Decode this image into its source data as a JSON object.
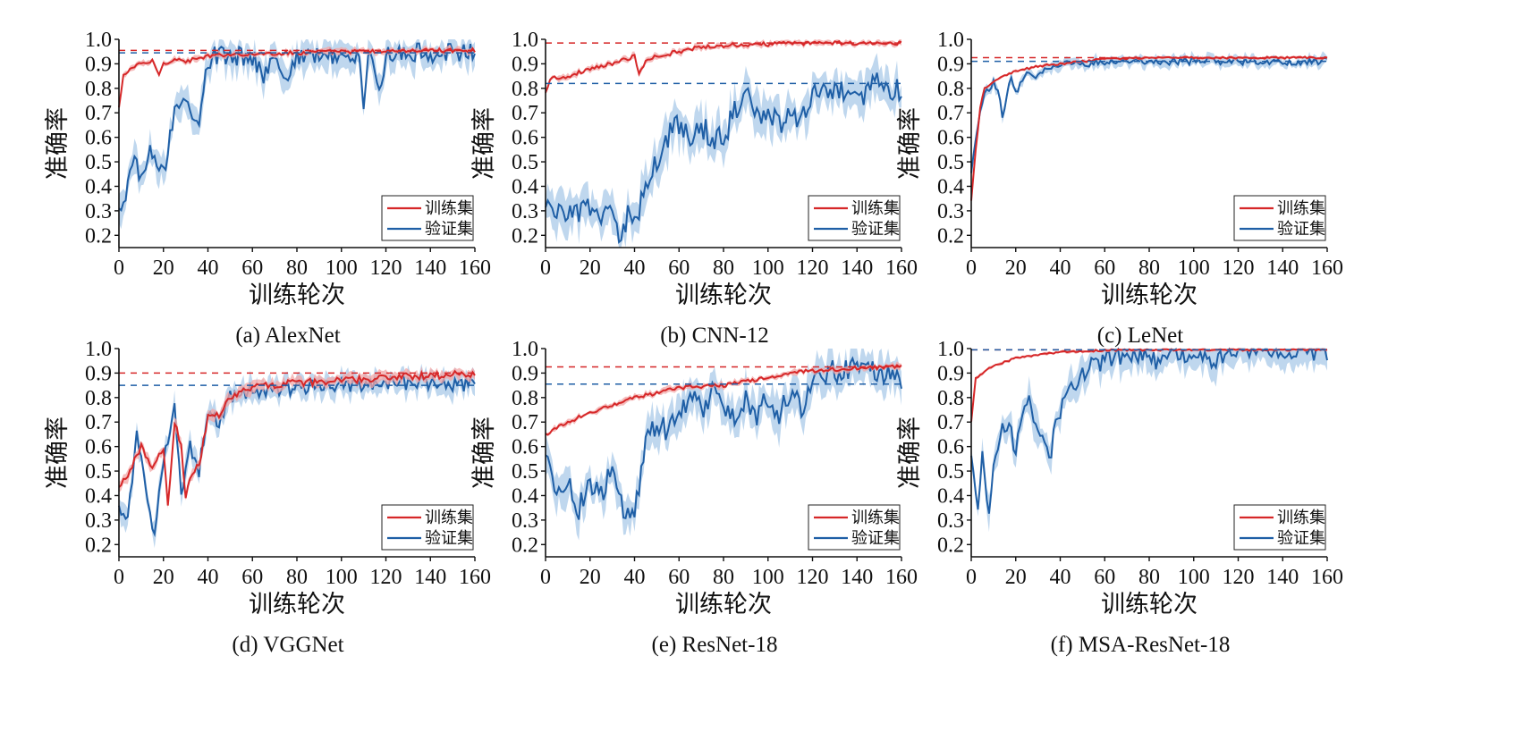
{
  "chart_data": [
    {
      "type": "line",
      "caption": "(a)  AlexNet",
      "xlabel": "训练轮次",
      "ylabel": "准确率",
      "xlim": [
        0,
        160
      ],
      "ylim": [
        0.15,
        1.0
      ],
      "xticks": [
        0,
        20,
        40,
        60,
        80,
        100,
        120,
        140,
        160
      ],
      "yticks": [
        0.2,
        0.3,
        0.4,
        0.5,
        0.6,
        0.7,
        0.8,
        0.9,
        1.0
      ],
      "legend": [
        "训练集",
        "验证集"
      ],
      "legend_position": "bottom-right",
      "colors": {
        "train": "#d62728",
        "val": "#1f5fa6",
        "train_band": "#f2a7a7",
        "val_band": "#a9c9e8"
      },
      "train_ref": 0.955,
      "val_ref": 0.945,
      "series": [
        {
          "name": "训练集",
          "x": [
            0,
            2,
            5,
            10,
            15,
            18,
            20,
            25,
            30,
            40,
            50,
            60,
            80,
            100,
            120,
            140,
            160
          ],
          "values": [
            0.72,
            0.85,
            0.88,
            0.9,
            0.91,
            0.86,
            0.9,
            0.92,
            0.91,
            0.93,
            0.94,
            0.94,
            0.945,
            0.95,
            0.95,
            0.955,
            0.955
          ],
          "noise": 0.008
        },
        {
          "name": "验证集",
          "x": [
            0,
            3,
            6,
            10,
            15,
            20,
            22,
            25,
            28,
            32,
            36,
            40,
            42,
            50,
            60,
            65,
            70,
            75,
            80,
            90,
            100,
            108,
            110,
            112,
            118,
            120,
            140,
            160
          ],
          "values": [
            0.3,
            0.35,
            0.5,
            0.45,
            0.55,
            0.45,
            0.55,
            0.7,
            0.75,
            0.72,
            0.68,
            0.9,
            0.93,
            0.93,
            0.93,
            0.86,
            0.92,
            0.85,
            0.93,
            0.93,
            0.94,
            0.92,
            0.72,
            0.93,
            0.8,
            0.94,
            0.945,
            0.945
          ],
          "noise": 0.04
        }
      ]
    },
    {
      "type": "line",
      "caption": "(b)  CNN-12",
      "xlabel": "训练轮次",
      "ylabel": "准确率",
      "xlim": [
        0,
        160
      ],
      "ylim": [
        0.15,
        1.0
      ],
      "xticks": [
        0,
        20,
        40,
        60,
        80,
        100,
        120,
        140,
        160
      ],
      "yticks": [
        0.2,
        0.3,
        0.4,
        0.5,
        0.6,
        0.7,
        0.8,
        0.9,
        1.0
      ],
      "legend": [
        "训练集",
        "验证集"
      ],
      "legend_position": "bottom-right",
      "colors": {
        "train": "#d62728",
        "val": "#1f5fa6",
        "train_band": "#f2a7a7",
        "val_band": "#a9c9e8"
      },
      "train_ref": 0.985,
      "val_ref": 0.82,
      "series": [
        {
          "name": "训练集",
          "x": [
            0,
            2,
            10,
            20,
            30,
            40,
            42,
            45,
            50,
            60,
            70,
            80,
            100,
            120,
            140,
            160
          ],
          "values": [
            0.78,
            0.84,
            0.85,
            0.88,
            0.9,
            0.93,
            0.86,
            0.91,
            0.93,
            0.95,
            0.97,
            0.975,
            0.98,
            0.985,
            0.985,
            0.985
          ],
          "noise": 0.008
        },
        {
          "name": "验证集",
          "x": [
            0,
            5,
            10,
            20,
            30,
            33,
            38,
            42,
            45,
            50,
            55,
            60,
            65,
            70,
            75,
            80,
            85,
            90,
            95,
            100,
            105,
            110,
            115,
            120,
            125,
            130,
            135,
            140,
            145,
            150,
            155,
            160
          ],
          "values": [
            0.3,
            0.28,
            0.3,
            0.3,
            0.28,
            0.18,
            0.3,
            0.3,
            0.4,
            0.5,
            0.6,
            0.65,
            0.6,
            0.65,
            0.6,
            0.6,
            0.7,
            0.8,
            0.7,
            0.7,
            0.65,
            0.7,
            0.65,
            0.8,
            0.82,
            0.78,
            0.8,
            0.75,
            0.8,
            0.85,
            0.78,
            0.8
          ],
          "noise": 0.05
        }
      ]
    },
    {
      "type": "line",
      "caption": "(c)  LeNet",
      "xlabel": "训练轮次",
      "ylabel": "准确率",
      "xlim": [
        0,
        160
      ],
      "ylim": [
        0.15,
        1.0
      ],
      "xticks": [
        0,
        20,
        40,
        60,
        80,
        100,
        120,
        140,
        160
      ],
      "yticks": [
        0.2,
        0.3,
        0.4,
        0.5,
        0.6,
        0.7,
        0.8,
        0.9,
        1.0
      ],
      "legend": [
        "训练集",
        "验证集"
      ],
      "legend_position": "bottom-right",
      "colors": {
        "train": "#d62728",
        "val": "#1f5fa6",
        "train_band": "#f2a7a7",
        "val_band": "#a9c9e8"
      },
      "train_ref": 0.925,
      "val_ref": 0.91,
      "series": [
        {
          "name": "训练集",
          "x": [
            0,
            2,
            4,
            6,
            10,
            15,
            20,
            30,
            40,
            60,
            80,
            100,
            120,
            140,
            160
          ],
          "values": [
            0.34,
            0.55,
            0.72,
            0.8,
            0.83,
            0.85,
            0.87,
            0.89,
            0.9,
            0.92,
            0.925,
            0.925,
            0.925,
            0.925,
            0.925
          ],
          "noise": 0.004
        },
        {
          "name": "验证集",
          "x": [
            0,
            2,
            4,
            6,
            10,
            12,
            14,
            16,
            18,
            20,
            25,
            30,
            35,
            40,
            60,
            80,
            100,
            120,
            140,
            160
          ],
          "values": [
            0.45,
            0.6,
            0.72,
            0.78,
            0.82,
            0.8,
            0.68,
            0.78,
            0.85,
            0.78,
            0.87,
            0.85,
            0.89,
            0.9,
            0.905,
            0.91,
            0.91,
            0.91,
            0.91,
            0.91
          ],
          "noise": 0.015
        }
      ]
    },
    {
      "type": "line",
      "caption": "(d)  VGGNet",
      "xlabel": "训练轮次",
      "ylabel": "准确率",
      "xlim": [
        0,
        160
      ],
      "ylim": [
        0.15,
        1.0
      ],
      "xticks": [
        0,
        20,
        40,
        60,
        80,
        100,
        120,
        140,
        160
      ],
      "yticks": [
        0.2,
        0.3,
        0.4,
        0.5,
        0.6,
        0.7,
        0.8,
        0.9,
        1.0
      ],
      "legend": [
        "训练集",
        "验证集"
      ],
      "legend_position": "bottom-right",
      "colors": {
        "train": "#d62728",
        "val": "#1f5fa6",
        "train_band": "#f2a7a7",
        "val_band": "#a9c9e8"
      },
      "train_ref": 0.9,
      "val_ref": 0.85,
      "series": [
        {
          "name": "训练集",
          "x": [
            0,
            5,
            10,
            15,
            20,
            22,
            25,
            28,
            30,
            33,
            36,
            40,
            45,
            50,
            60,
            80,
            100,
            120,
            140,
            160
          ],
          "values": [
            0.43,
            0.5,
            0.6,
            0.5,
            0.6,
            0.35,
            0.7,
            0.6,
            0.4,
            0.5,
            0.52,
            0.72,
            0.73,
            0.8,
            0.84,
            0.86,
            0.87,
            0.88,
            0.89,
            0.9
          ],
          "noise": 0.015
        },
        {
          "name": "验证集",
          "x": [
            0,
            4,
            8,
            12,
            16,
            20,
            25,
            28,
            32,
            36,
            40,
            45,
            50,
            60,
            80,
            100,
            120,
            140,
            160
          ],
          "values": [
            0.35,
            0.3,
            0.65,
            0.45,
            0.24,
            0.55,
            0.77,
            0.4,
            0.6,
            0.5,
            0.75,
            0.7,
            0.8,
            0.83,
            0.84,
            0.85,
            0.86,
            0.86,
            0.85
          ],
          "noise": 0.03
        }
      ]
    },
    {
      "type": "line",
      "caption": "(e)  ResNet-18",
      "xlabel": "训练轮次",
      "ylabel": "准确率",
      "xlim": [
        0,
        160
      ],
      "ylim": [
        0.15,
        1.0
      ],
      "xticks": [
        0,
        20,
        40,
        60,
        80,
        100,
        120,
        140,
        160
      ],
      "yticks": [
        0.2,
        0.3,
        0.4,
        0.5,
        0.6,
        0.7,
        0.8,
        0.9,
        1.0
      ],
      "legend": [
        "训练集",
        "验证集"
      ],
      "legend_position": "bottom-right",
      "colors": {
        "train": "#d62728",
        "val": "#1f5fa6",
        "train_band": "#f2a7a7",
        "val_band": "#a9c9e8"
      },
      "train_ref": 0.925,
      "val_ref": 0.855,
      "series": [
        {
          "name": "训练集",
          "x": [
            0,
            10,
            20,
            30,
            40,
            50,
            60,
            80,
            100,
            110,
            120,
            140,
            160
          ],
          "values": [
            0.65,
            0.7,
            0.74,
            0.77,
            0.8,
            0.82,
            0.84,
            0.85,
            0.88,
            0.9,
            0.91,
            0.92,
            0.925
          ],
          "noise": 0.008
        },
        {
          "name": "验证集",
          "x": [
            0,
            5,
            10,
            15,
            20,
            25,
            30,
            35,
            40,
            45,
            50,
            55,
            60,
            65,
            70,
            75,
            80,
            85,
            90,
            95,
            100,
            105,
            110,
            115,
            120,
            125,
            130,
            140,
            150,
            160
          ],
          "values": [
            0.55,
            0.4,
            0.45,
            0.35,
            0.45,
            0.4,
            0.5,
            0.35,
            0.35,
            0.6,
            0.7,
            0.65,
            0.75,
            0.8,
            0.75,
            0.82,
            0.78,
            0.7,
            0.8,
            0.72,
            0.8,
            0.72,
            0.82,
            0.75,
            0.85,
            0.9,
            0.91,
            0.91,
            0.91,
            0.855
          ],
          "noise": 0.05
        }
      ]
    },
    {
      "type": "line",
      "caption": "(f)  MSA-ResNet-18",
      "xlabel": "训练轮次",
      "ylabel": "准确率",
      "xlim": [
        0,
        160
      ],
      "ylim": [
        0.15,
        1.0
      ],
      "xticks": [
        0,
        20,
        40,
        60,
        80,
        100,
        120,
        140,
        160
      ],
      "yticks": [
        0.2,
        0.3,
        0.4,
        0.5,
        0.6,
        0.7,
        0.8,
        0.9,
        1.0
      ],
      "legend": [
        "训练集",
        "验证集"
      ],
      "legend_position": "bottom-right",
      "colors": {
        "train": "#d62728",
        "val": "#1f5fa6",
        "train_band": "#f2a7a7",
        "val_band": "#a9c9e8"
      },
      "train_ref": 0.995,
      "val_ref": 0.995,
      "series": [
        {
          "name": "训练集",
          "x": [
            0,
            2,
            5,
            10,
            20,
            30,
            40,
            50,
            60,
            80,
            100,
            120,
            140,
            160
          ],
          "values": [
            0.7,
            0.88,
            0.9,
            0.93,
            0.96,
            0.975,
            0.985,
            0.99,
            0.993,
            0.995,
            0.995,
            0.995,
            0.995,
            0.995
          ],
          "noise": 0.004
        },
        {
          "name": "验证集",
          "x": [
            0,
            3,
            5,
            8,
            10,
            15,
            20,
            25,
            30,
            35,
            40,
            45,
            50,
            55,
            60,
            65,
            70,
            75,
            80,
            85,
            90,
            95,
            100,
            110,
            120,
            130,
            140,
            150,
            160
          ],
          "values": [
            0.55,
            0.38,
            0.6,
            0.29,
            0.55,
            0.7,
            0.6,
            0.8,
            0.65,
            0.55,
            0.75,
            0.85,
            0.9,
            0.93,
            0.95,
            0.96,
            0.97,
            0.98,
            0.96,
            0.94,
            0.97,
            0.96,
            0.99,
            0.95,
            0.995,
            0.995,
            0.995,
            0.99,
            0.99
          ],
          "noise": 0.04
        }
      ]
    }
  ]
}
